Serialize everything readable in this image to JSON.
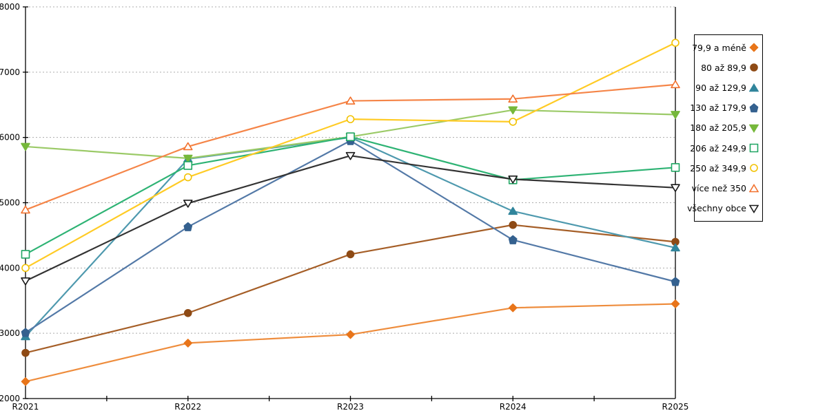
{
  "chart_data": {
    "type": "line",
    "categories": [
      "R2021",
      "R2022",
      "R2023",
      "R2024",
      "R2025"
    ],
    "series": [
      {
        "name": "79,9 a méně",
        "marker": "diamond",
        "fill": "solid",
        "color": "#E8751A",
        "line_color": "#EE8C3C",
        "values": [
          2260,
          2850,
          2980,
          3390,
          3450
        ]
      },
      {
        "name": "80 až 89,9",
        "marker": "circle",
        "fill": "solid",
        "color": "#8E4A15",
        "line_color": "#A55E27",
        "values": [
          2700,
          3310,
          4210,
          4660,
          4400
        ]
      },
      {
        "name": "90 až 129,9",
        "marker": "triangle-up",
        "fill": "solid",
        "color": "#31859C",
        "line_color": "#4E99AE",
        "values": [
          2950,
          5670,
          6000,
          4870,
          4310
        ]
      },
      {
        "name": "130 až 179,9",
        "marker": "pentagon",
        "fill": "solid",
        "color": "#34618F",
        "line_color": "#5379A7",
        "values": [
          3010,
          4630,
          5950,
          4430,
          3790
        ]
      },
      {
        "name": "180 až 205,9",
        "marker": "triangle-down",
        "fill": "solid",
        "color": "#76B83B",
        "line_color": "#9BCA67",
        "values": [
          5860,
          5680,
          6010,
          6420,
          6350
        ]
      },
      {
        "name": "206 až 249,9",
        "marker": "square",
        "fill": "open",
        "color": "#1FA562",
        "line_color": "#2EB374",
        "values": [
          4210,
          5570,
          6010,
          5350,
          5540
        ]
      },
      {
        "name": "250 až 349,9",
        "marker": "circle",
        "fill": "open",
        "color": "#F2C203",
        "line_color": "#FFCB25",
        "values": [
          4000,
          5390,
          6280,
          6240,
          7450
        ]
      },
      {
        "name": "více než 350",
        "marker": "triangle-up",
        "fill": "open",
        "color": "#F2712D",
        "line_color": "#F58548",
        "values": [
          4890,
          5860,
          6560,
          6590,
          6810
        ]
      },
      {
        "name": "všechny obce",
        "marker": "triangle-down",
        "fill": "open",
        "color": "#1A1A1A",
        "line_color": "#333333",
        "values": [
          3800,
          4990,
          5720,
          5360,
          5230
        ]
      }
    ],
    "title": "",
    "xlabel": "",
    "ylabel": "",
    "ylim": [
      2000,
      8000
    ],
    "ytick_step": 1000,
    "yticks": [
      "2000",
      "3000",
      "4000",
      "5000",
      "6000",
      "7000",
      "8000"
    ],
    "grid": "horizontal-dashed",
    "legend_position": "right",
    "axis_color": "#000000",
    "gridline_color": "#ABABAB"
  }
}
